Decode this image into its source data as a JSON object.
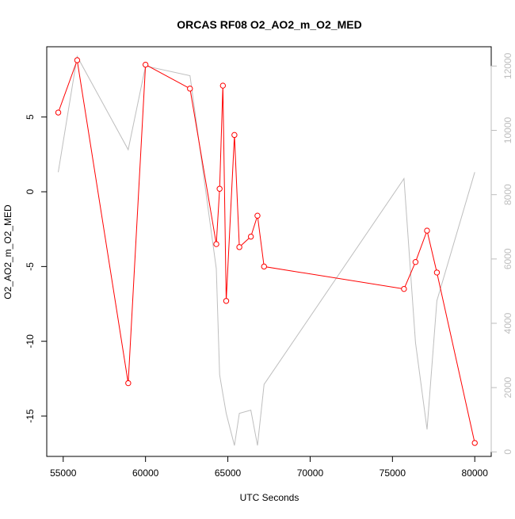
{
  "chart_data": {
    "type": "line",
    "title": "ORCAS RF08 O2_AO2_m_O2_MED",
    "xlabel": "UTC Seconds",
    "ylabel": "O2_AO2_m_O2_MED",
    "xlim": [
      54000,
      81000
    ],
    "ylim": [
      -17.7,
      9.7
    ],
    "y2lim": [
      -140,
      12600
    ],
    "xticks": [
      55000,
      60000,
      65000,
      70000,
      75000,
      80000
    ],
    "yticks": [
      -15,
      -10,
      -5,
      0,
      5
    ],
    "y2ticks": [
      0,
      2000,
      4000,
      6000,
      8000,
      10000,
      12000
    ],
    "grid": false,
    "colors": {
      "primary": "#ff0000",
      "secondary": "#bebebe",
      "axis": "#000000"
    },
    "series": [
      {
        "axis": "left",
        "markers": true,
        "x": [
          54700,
          55850,
          58950,
          60000,
          62700,
          64300,
          64500,
          64700,
          64900,
          65400,
          65700,
          66400,
          66800,
          67200,
          75700,
          76400,
          77100,
          77700,
          80000
        ],
        "y": [
          5.3,
          8.8,
          -12.8,
          8.5,
          6.9,
          -3.5,
          0.2,
          7.1,
          -7.3,
          3.8,
          -3.7,
          -3.0,
          -1.6,
          -5.0,
          -6.5,
          -4.7,
          -2.6,
          -5.4,
          -16.8
        ]
      },
      {
        "axis": "right",
        "markers": false,
        "x": [
          54700,
          55850,
          58950,
          60000,
          62700,
          64300,
          64500,
          64700,
          64900,
          65400,
          65700,
          66400,
          66800,
          67200,
          75700,
          76400,
          77100,
          77700,
          80000
        ],
        "y": [
          8700,
          12300,
          9400,
          12000,
          11700,
          5700,
          2400,
          1800,
          1200,
          200,
          1200,
          1300,
          200,
          2100,
          8500,
          3400,
          700,
          4700,
          8700
        ]
      }
    ]
  }
}
